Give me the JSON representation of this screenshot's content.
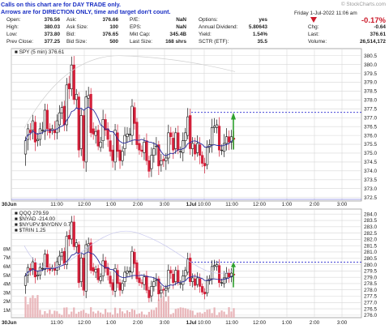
{
  "notice": {
    "line1": "Calls on this chart are for DAY TRADE only.",
    "line2": "Arrows are for DIRECTION ONLY, time and target don't count."
  },
  "quote": {
    "open_label": "Open:",
    "open": "376.56",
    "high_label": "High:",
    "high": "380.03",
    "low_label": "Low:",
    "low": "373.80",
    "prev_label": "Prev Close:",
    "prev": "377.25",
    "ask_label": "Ask:",
    "ask": "376.66",
    "asksize_label": "Ask Size:",
    "asksize": "100",
    "bid_label": "Bid:",
    "bid": "376.65",
    "bidsize_label": "Bid Size:",
    "bidsize": "500",
    "pe_label": "P/E:",
    "pe": "NaN",
    "eps_label": "EPS:",
    "eps": "NaN",
    "mktcap_label": "Mkt Cap:",
    "mktcap": "345.4B",
    "lastsize_label": "Last Size:",
    "lastsize": "168 shrs",
    "options_label": "Options:",
    "options": "yes",
    "div_label": "Annual Dividend:",
    "div": "5.80643",
    "yield_label": "Yield:",
    "yield": "1.54%",
    "sctr_label": "SCTR (ETF):",
    "sctr": "35.5",
    "datetime": "Friday   1-Jul-2022   11:06 am",
    "pct_change": "-0.17%",
    "chg_label": "Chg:",
    "chg": "-0.64",
    "last_label": "Last:",
    "last": "376.61",
    "volume_label": "Volume:",
    "volume": "26,514,172",
    "brand": "© StockCharts.com"
  },
  "colors": {
    "notice": "#1a2fc4",
    "down_candle": "#d4203a",
    "up_candle": "#111111",
    "arrow_up": "#2ea12e",
    "ma": "#2a2a9c",
    "ref_line": "#2a2ad0",
    "grid": "#d8d8d8",
    "volume_bar": "#e8b4b8",
    "pct_change": "#cc1a2a"
  },
  "chart_data": [
    {
      "type": "candlestick",
      "title": "SPY (5 min) 376.61",
      "x_ticks": [
        "30Jun",
        "11:00",
        "12:00",
        "1:00",
        "2:00",
        "3:00",
        "1Jul",
        "10:00",
        "11:00",
        "12:00",
        "1:00",
        "2:00",
        "3:00"
      ],
      "y_ticks": [
        372.5,
        373.0,
        373.5,
        374.0,
        374.5,
        375.0,
        375.5,
        376.0,
        376.5,
        377.0,
        377.5,
        378.0,
        378.5,
        379.0,
        379.5,
        380.0,
        380.5
      ],
      "ylim": [
        372.3,
        380.9
      ],
      "reference_line": 377.3,
      "legend": "SPY (5 min) 376.61",
      "bars": [
        [
          30,
          40,
          13,
          128
        ],
        [
          41,
          49,
          24,
          115
        ],
        [
          48,
          46,
          55,
          65
        ],
        [
          48,
          55,
          40,
          90
        ],
        [
          54,
          39,
          45,
          85
        ],
        [
          40,
          41,
          46,
          35
        ],
        [
          41,
          49,
          41,
          46
        ],
        [
          48,
          48,
          72,
          11
        ],
        [
          47,
          63,
          47,
          79
        ],
        [
          63,
          49,
          42,
          52
        ],
        [
          49,
          46,
          33,
          34
        ],
        [
          48,
          49,
          12,
          18
        ],
        [
          48,
          46,
          87,
          57
        ],
        [
          46,
          55,
          46,
          48
        ],
        [
          52,
          61,
          66,
          64
        ],
        [
          61,
          65,
          39,
          45
        ],
        [
          66,
          52,
          32,
          45
        ],
        [
          52,
          82,
          55,
          48
        ],
        [
          83,
          79,
          66,
          101
        ],
        [
          79,
          97,
          77,
          58
        ],
        [
          97,
          71,
          86,
          24
        ],
        [
          71,
          75,
          29,
          84
        ],
        [
          73,
          33,
          23,
          62
        ],
        [
          34,
          59,
          45,
          61
        ],
        [
          59,
          25,
          24,
          67
        ],
        [
          24,
          73,
          46,
          99
        ],
        [
          72,
          74,
          82,
          91
        ],
        [
          75,
          46,
          43,
          18
        ],
        [
          49,
          45,
          47,
          35
        ],
        [
          44,
          47,
          30,
          72
        ],
        [
          48,
          36,
          30,
          12
        ],
        [
          35,
          39,
          28,
          17
        ],
        [
          40,
          56,
          96,
          67
        ],
        [
          56,
          48,
          35,
          40
        ],
        [
          49,
          41,
          48,
          64
        ],
        [
          40,
          32,
          43,
          27
        ],
        [
          33,
          25,
          25,
          55
        ],
        [
          24,
          48,
          42,
          74
        ],
        [
          46,
          32,
          76,
          44
        ],
        [
          33,
          25,
          29,
          74
        ],
        [
          25,
          32,
          29,
          26
        ],
        [
          34,
          44,
          76,
          57
        ],
        [
          43,
          45,
          53,
          43
        ],
        [
          45,
          45,
          44,
          53
        ],
        [
          44,
          66,
          58,
          94
        ],
        [
          65,
          53,
          27,
          43
        ],
        [
          54,
          37,
          10,
          14
        ],
        [
          38,
          33,
          85,
          20
        ],
        [
          33,
          32,
          21,
          36
        ],
        [
          31,
          39,
          19,
          61
        ],
        [
          40,
          25,
          60,
          17
        ],
        [
          25,
          17,
          24,
          46
        ],
        [
          19,
          29,
          71,
          76
        ],
        [
          29,
          34,
          49,
          58
        ],
        [
          36,
          36,
          86,
          89
        ],
        [
          37,
          21,
          9,
          86
        ],
        [
          22,
          25,
          51,
          56
        ],
        [
          26,
          25,
          5,
          45
        ],
        [
          25,
          27,
          22,
          90
        ],
        [
          27,
          46,
          72,
          40
        ],
        [
          46,
          43,
          37,
          70
        ],
        [
          42,
          33,
          48,
          84
        ],
        [
          34,
          46,
          24,
          28
        ],
        [
          46,
          33,
          57,
          12
        ],
        [
          32,
          32,
          24,
          53
        ],
        [
          31,
          40,
          76,
          81
        ],
        [
          40,
          46,
          23,
          43
        ],
        [
          44,
          58,
          82,
          8
        ],
        [
          59,
          34,
          52,
          42
        ],
        [
          34,
          38,
          45,
          68
        ],
        [
          37,
          30,
          58,
          45
        ],
        [
          31,
          38,
          70,
          11
        ],
        [
          37,
          29,
          64,
          84
        ],
        [
          29,
          23,
          10,
          6
        ],
        [
          23,
          21,
          33,
          62
        ],
        [
          22,
          35,
          56,
          21
        ],
        [
          35,
          37,
          31,
          33
        ],
        [
          37,
          50,
          80,
          70
        ],
        [
          50,
          51,
          71,
          32
        ],
        [
          50,
          52,
          30,
          39
        ],
        [
          51,
          33,
          84,
          51
        ],
        [
          33,
          33,
          33,
          24
        ],
        [
          32,
          38,
          91,
          37
        ],
        [
          38,
          43,
          80,
          57
        ],
        [
          43,
          39,
          44,
          71
        ],
        [
          39,
          43,
          54,
          62
        ],
        [
          42,
          41,
          52,
          91
        ]
      ]
    },
    {
      "type": "candlestick",
      "title": "QQQ 279.59",
      "legend": [
        "QQQ 279.59",
        "$NYAD -214.00",
        "$NYUPV:$NYDNV 0.70",
        "$TRIN 1.25"
      ],
      "x_ticks": [
        "30Jun",
        "11:00",
        "12:00",
        "1:00",
        "2:00",
        "3:00",
        "1Jul",
        "10:00",
        "11:00",
        "12:00",
        "1:00",
        "2:00",
        "3:00"
      ],
      "y_ticks": [
        276.0,
        276.5,
        277.0,
        277.5,
        278.0,
        278.5,
        279.0,
        279.5,
        280.0,
        280.5,
        281.0,
        281.5,
        282.0,
        282.5,
        283.0,
        283.5,
        284.0
      ],
      "ylim": [
        275.8,
        284.4
      ],
      "reference_line": 280.2,
      "volume_ticks": [
        "1M",
        "2M",
        "3M",
        "4M",
        "5M",
        "6M",
        "7M",
        "8M"
      ]
    }
  ]
}
